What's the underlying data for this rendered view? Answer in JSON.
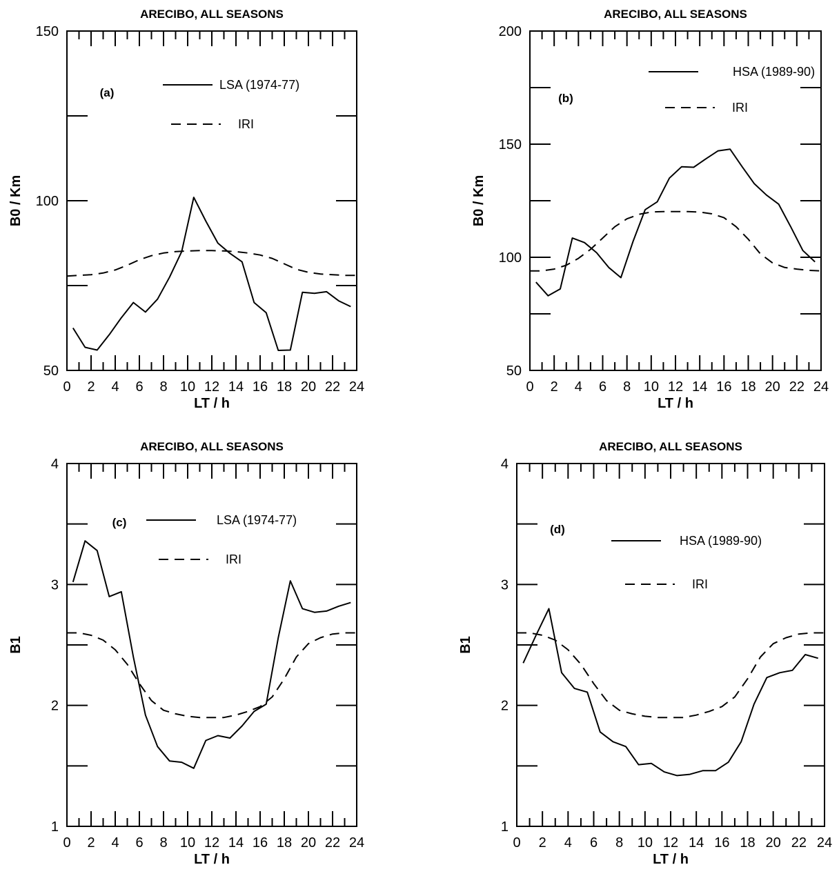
{
  "chart_data": [
    {
      "type": "line",
      "title": "ARECIBO, ALL SEASONS",
      "panel_label": "(a)",
      "xlabel": "LT / h",
      "ylabel": "B0 / Km",
      "xlim": [
        0,
        24
      ],
      "ylim": [
        50,
        150
      ],
      "xticks": [
        0,
        2,
        4,
        6,
        8,
        10,
        12,
        14,
        16,
        18,
        20,
        22,
        24
      ],
      "yticks": [
        50,
        100,
        150
      ],
      "series": [
        {
          "name": "LSA (1974-77)",
          "style": "solid",
          "x": [
            0.5,
            1.5,
            2.5,
            3.5,
            4.5,
            5.5,
            6.5,
            7.5,
            8.5,
            9.5,
            10.5,
            11.5,
            12.5,
            13.5,
            14.5,
            15.5,
            16.5,
            17.5,
            18.5,
            19.5,
            20.5,
            21.5,
            22.5,
            23.5
          ],
          "y": [
            62.5,
            56.8,
            56.0,
            60.5,
            65.5,
            70.0,
            67.2,
            71.0,
            77.5,
            85.0,
            101.0,
            94.0,
            87.5,
            84.5,
            82.0,
            70.0,
            67.0,
            55.9,
            56.0,
            73.0,
            72.7,
            73.2,
            70.5,
            68.8
          ]
        },
        {
          "name": "IRI",
          "style": "dashed",
          "x": [
            0,
            1,
            2,
            3,
            4,
            5,
            6,
            7,
            8,
            9,
            10,
            11,
            12,
            13,
            14,
            15,
            16,
            17,
            18,
            19,
            20,
            21,
            22,
            23,
            24
          ],
          "y": [
            77.8,
            78.0,
            78.2,
            78.7,
            79.6,
            81.0,
            82.6,
            83.8,
            84.6,
            85.0,
            85.2,
            85.3,
            85.3,
            85.2,
            85.0,
            84.6,
            84.0,
            83.0,
            81.4,
            79.8,
            78.9,
            78.4,
            78.2,
            78.0,
            78.0
          ]
        }
      ]
    },
    {
      "type": "line",
      "title": "ARECIBO, ALL SEASONS",
      "panel_label": "(b)",
      "xlabel": "LT / h",
      "ylabel": "B0 / Km",
      "xlim": [
        0,
        24
      ],
      "ylim": [
        50,
        200
      ],
      "xticks": [
        0,
        2,
        4,
        6,
        8,
        10,
        12,
        14,
        16,
        18,
        20,
        22,
        24
      ],
      "yticks": [
        50,
        100,
        150,
        200
      ],
      "series": [
        {
          "name": "HSA (1989-90)",
          "style": "solid",
          "x": [
            0.5,
            1.5,
            2.5,
            3.5,
            4.5,
            5.5,
            6.5,
            7.5,
            8.5,
            9.5,
            10.5,
            11.5,
            12.5,
            13.5,
            14.5,
            15.5,
            16.5,
            17.5,
            18.5,
            19.5,
            20.5,
            21.5,
            22.5,
            23.5
          ],
          "y": [
            89.0,
            83.0,
            86.0,
            108.5,
            106.5,
            102.0,
            95.5,
            91.0,
            107.0,
            121.0,
            124.5,
            135.0,
            140.0,
            139.8,
            143.5,
            147.0,
            147.8,
            140.0,
            132.5,
            127.5,
            123.5,
            113.5,
            103.0,
            98.0
          ]
        },
        {
          "name": "IRI",
          "style": "dashed",
          "x": [
            0,
            1,
            2,
            3,
            4,
            5,
            6,
            7,
            8,
            9,
            10,
            11,
            12,
            13,
            14,
            15,
            16,
            17,
            18,
            19,
            20,
            21,
            22,
            23,
            24
          ],
          "y": [
            94.0,
            94.0,
            94.8,
            96.5,
            99.5,
            103.5,
            108.5,
            113.5,
            117.0,
            119.0,
            120.0,
            120.2,
            120.2,
            120.2,
            120.0,
            119.2,
            117.5,
            113.5,
            108.0,
            101.5,
            97.5,
            95.5,
            94.8,
            94.2,
            94.0
          ]
        }
      ]
    },
    {
      "type": "line",
      "title": "ARECIBO, ALL SEASONS",
      "panel_label": "(c)",
      "xlabel": "LT / h",
      "ylabel": "B1",
      "xlim": [
        0,
        24
      ],
      "ylim": [
        1,
        4
      ],
      "xticks": [
        0,
        2,
        4,
        6,
        8,
        10,
        12,
        14,
        16,
        18,
        20,
        22,
        24
      ],
      "yticks": [
        1,
        2,
        3,
        4
      ],
      "series": [
        {
          "name": "LSA (1974-77)",
          "style": "solid",
          "x": [
            0.5,
            1.5,
            2.5,
            3.5,
            4.5,
            5.5,
            6.5,
            7.5,
            8.5,
            9.5,
            10.5,
            11.5,
            12.5,
            13.5,
            14.5,
            15.5,
            16.5,
            17.5,
            18.5,
            19.5,
            20.5,
            21.5,
            22.5,
            23.5
          ],
          "y": [
            3.02,
            3.36,
            3.28,
            2.9,
            2.94,
            2.4,
            1.92,
            1.66,
            1.54,
            1.53,
            1.48,
            1.71,
            1.75,
            1.73,
            1.83,
            1.95,
            2.01,
            2.56,
            3.03,
            2.8,
            2.77,
            2.78,
            2.82,
            2.85
          ]
        },
        {
          "name": "IRI",
          "style": "dashed",
          "x": [
            0,
            1,
            2,
            3,
            4,
            5,
            6,
            7,
            8,
            9,
            10,
            11,
            12,
            13,
            14,
            15,
            16,
            17,
            18,
            19,
            20,
            21,
            22,
            23,
            24
          ],
          "y": [
            2.6,
            2.6,
            2.58,
            2.54,
            2.46,
            2.34,
            2.18,
            2.04,
            1.96,
            1.93,
            1.91,
            1.9,
            1.9,
            1.9,
            1.92,
            1.95,
            1.99,
            2.07,
            2.22,
            2.4,
            2.51,
            2.56,
            2.59,
            2.6,
            2.6
          ]
        }
      ]
    },
    {
      "type": "line",
      "title": "ARECIBO, ALL SEASONS",
      "panel_label": "(d)",
      "xlabel": "LT / h",
      "ylabel": "B1",
      "xlim": [
        0,
        24
      ],
      "ylim": [
        1,
        4
      ],
      "xticks": [
        0,
        2,
        4,
        6,
        8,
        10,
        12,
        14,
        16,
        18,
        20,
        22,
        24
      ],
      "yticks": [
        1,
        2,
        3,
        4
      ],
      "series": [
        {
          "name": "HSA (1989-90)",
          "style": "solid",
          "x": [
            0.5,
            1.5,
            2.5,
            3.5,
            4.5,
            5.5,
            6.5,
            7.5,
            8.5,
            9.5,
            10.5,
            11.5,
            12.5,
            13.5,
            14.5,
            15.5,
            16.5,
            17.5,
            18.5,
            19.5,
            20.5,
            21.5,
            22.5,
            23.5
          ],
          "y": [
            2.35,
            2.58,
            2.8,
            2.27,
            2.14,
            2.11,
            1.78,
            1.7,
            1.66,
            1.51,
            1.52,
            1.45,
            1.42,
            1.43,
            1.46,
            1.46,
            1.53,
            1.7,
            2.01,
            2.23,
            2.27,
            2.29,
            2.42,
            2.39
          ]
        },
        {
          "name": "IRI",
          "style": "dashed",
          "x": [
            0,
            1,
            2,
            3,
            4,
            5,
            6,
            7,
            8,
            9,
            10,
            11,
            12,
            13,
            14,
            15,
            16,
            17,
            18,
            19,
            20,
            21,
            22,
            23,
            24
          ],
          "y": [
            2.6,
            2.6,
            2.58,
            2.54,
            2.46,
            2.34,
            2.18,
            2.04,
            1.96,
            1.93,
            1.91,
            1.9,
            1.9,
            1.9,
            1.92,
            1.95,
            1.99,
            2.07,
            2.22,
            2.4,
            2.51,
            2.56,
            2.59,
            2.6,
            2.6
          ]
        }
      ]
    }
  ]
}
